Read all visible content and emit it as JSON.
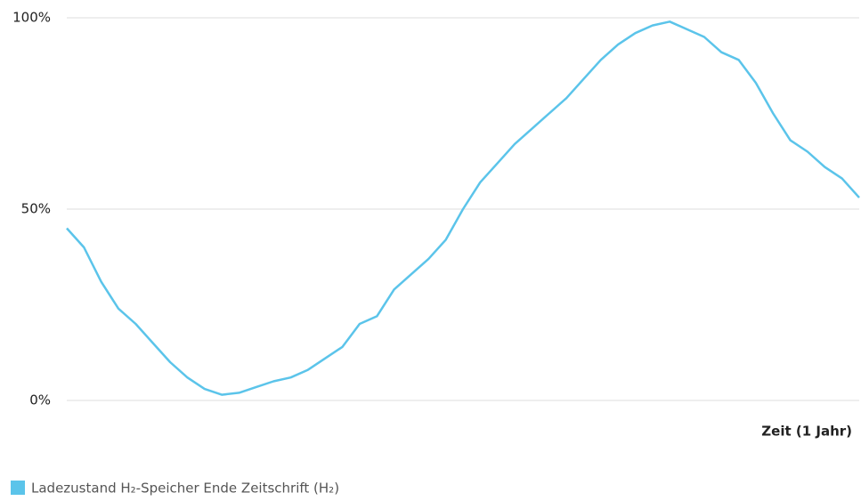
{
  "chart_data": {
    "type": "line",
    "x_label": "Zeit (1 Jahr)",
    "series": [
      {
        "name": "Ladezustand H₂-Speicher Ende Zeitschrift (H₂)",
        "color": "#5bc4ea",
        "values": [
          45,
          40,
          31,
          24,
          20,
          15,
          10,
          6,
          3,
          1.5,
          2,
          3.5,
          5,
          6,
          8,
          11,
          14,
          20,
          22,
          29,
          33,
          37,
          42,
          50,
          57,
          62,
          67,
          71,
          75,
          79,
          84,
          89,
          93,
          96,
          98,
          99,
          97,
          95,
          91,
          89,
          83,
          75,
          68,
          65,
          61,
          58,
          53
        ]
      }
    ],
    "ylim": [
      0,
      100
    ],
    "yticks": [
      {
        "value": 0,
        "label": "0%"
      },
      {
        "value": 50,
        "label": "50%"
      },
      {
        "value": 100,
        "label": "100%"
      }
    ],
    "grid": true
  }
}
